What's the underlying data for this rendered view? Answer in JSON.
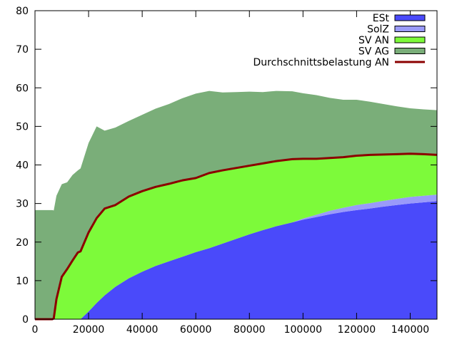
{
  "chart_data": {
    "type": "area",
    "x": [
      0,
      6500,
      7000,
      8000,
      10000,
      12000,
      14000,
      16000,
      17000,
      20000,
      23000,
      26000,
      30000,
      35000,
      40000,
      45000,
      50000,
      55000,
      60000,
      65000,
      70000,
      75000,
      80000,
      85000,
      90000,
      96000,
      100000,
      105000,
      110000,
      115000,
      120000,
      125000,
      130000,
      135000,
      140000,
      145000,
      150000
    ],
    "series": [
      {
        "name": "ESt",
        "color": "#4a4afa",
        "values": [
          0,
          0,
          0,
          0,
          0,
          0,
          0,
          0,
          0,
          2.0,
          4.2,
          6.2,
          8.4,
          10.6,
          12.3,
          13.8,
          15.0,
          16.2,
          17.4,
          18.4,
          19.6,
          20.8,
          22.0,
          23.1,
          24.1,
          25.1,
          25.8,
          26.5,
          27.2,
          27.8,
          28.3,
          28.7,
          29.2,
          29.6,
          30.0,
          30.3,
          30.6
        ]
      },
      {
        "name": "SolZ",
        "color": "#9a9afa",
        "values": [
          0,
          0,
          0,
          0,
          0,
          0,
          0,
          0,
          0,
          0,
          0,
          0,
          0,
          0,
          0,
          0,
          0,
          0,
          0,
          0,
          0,
          0,
          0,
          0,
          0,
          0,
          0.3,
          0.6,
          0.9,
          1.1,
          1.3,
          1.4,
          1.5,
          1.6,
          1.7,
          1.7,
          1.7
        ]
      },
      {
        "name": "SV AN",
        "color": "#7dfa3a",
        "values": [
          0,
          0,
          0.2,
          5.2,
          11.0,
          13.0,
          15.2,
          17.3,
          17.6,
          20.5,
          22.0,
          22.5,
          21.2,
          21.2,
          20.9,
          20.5,
          20.1,
          19.8,
          19.2,
          19.5,
          19.0,
          18.4,
          17.8,
          17.3,
          16.9,
          16.4,
          15.5,
          14.5,
          13.7,
          13.1,
          12.8,
          12.5,
          12.0,
          11.4,
          10.9,
          10.6,
          10.3
        ]
      },
      {
        "name": "SV AG",
        "color": "#7aae79",
        "values": [
          28.3,
          28.3,
          28.0,
          26.8,
          24.0,
          22.5,
          22.2,
          21.3,
          21.5,
          23.2,
          23.8,
          20.2,
          20.1,
          19.6,
          19.8,
          20.3,
          20.7,
          21.3,
          21.9,
          21.3,
          20.2,
          19.7,
          19.2,
          18.5,
          18.2,
          17.6,
          17.0,
          16.5,
          15.6,
          14.9,
          14.5,
          13.8,
          13.1,
          12.6,
          12.1,
          11.8,
          11.6
        ]
      }
    ],
    "line": {
      "name": "Durchschnittsbelastung AN",
      "color": "#8b0000",
      "values": [
        0,
        0,
        0.2,
        5.2,
        11.0,
        13.0,
        15.2,
        17.3,
        17.6,
        22.5,
        26.2,
        28.7,
        29.6,
        31.8,
        33.2,
        34.3,
        35.1,
        36.0,
        36.6,
        37.9,
        38.6,
        39.2,
        39.8,
        40.4,
        41.0,
        41.5,
        41.6,
        41.6,
        41.8,
        42.0,
        42.4,
        42.6,
        42.7,
        42.8,
        42.9,
        42.8,
        42.6
      ]
    },
    "xlim": [
      0,
      150000
    ],
    "ylim": [
      0,
      80
    ],
    "xticks": [
      0,
      20000,
      40000,
      60000,
      80000,
      100000,
      120000,
      140000
    ],
    "yticks": [
      0,
      10,
      20,
      30,
      40,
      50,
      60,
      70,
      80
    ],
    "legend_labels": [
      "ESt",
      "SolZ",
      "SV AN",
      "SV AG",
      "Durchschnittsbelastung AN"
    ],
    "legend_position": "top-right",
    "grid": false,
    "title": "",
    "xlabel": "",
    "ylabel": ""
  }
}
